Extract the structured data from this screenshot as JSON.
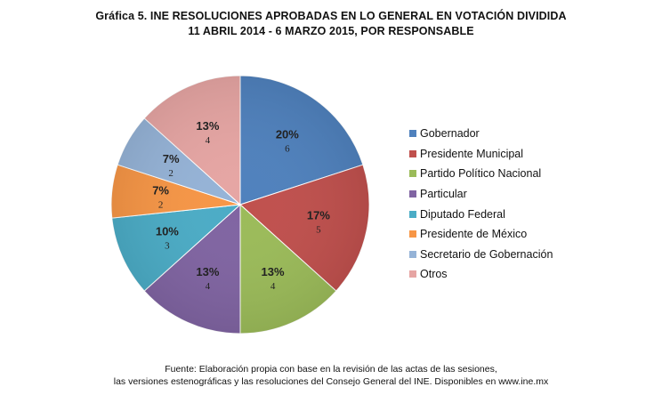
{
  "title": {
    "line1": "Gráfica 5. INE RESOLUCIONES APROBADAS EN LO GENERAL EN VOTACIÓN DIVIDIDA",
    "line2": "11 ABRIL 2014 - 6 MARZO 2015, POR RESPONSABLE"
  },
  "chart_data": {
    "type": "pie",
    "title": "Gráfica 5. INE RESOLUCIONES APROBADAS EN LO GENERAL EN VOTACIÓN DIVIDIDA 11 ABRIL 2014 - 6 MARZO 2015, POR RESPONSABLE",
    "legend_position": "right",
    "slices": [
      {
        "label": "Gobernador",
        "value": 6,
        "percent": "20%",
        "color": "#4f81bd"
      },
      {
        "label": "Presidente Municipal",
        "value": 5,
        "percent": "17%",
        "color": "#c0504d"
      },
      {
        "label": "Partido Político Nacional",
        "value": 4,
        "percent": "13%",
        "color": "#9bbb59"
      },
      {
        "label": "Particular",
        "value": 4,
        "percent": "13%",
        "color": "#8064a2"
      },
      {
        "label": "Diputado Federal",
        "value": 3,
        "percent": "10%",
        "color": "#4bacc6"
      },
      {
        "label": "Presidente de México",
        "value": 2,
        "percent": "7%",
        "color": "#f79646"
      },
      {
        "label": "Secretario de Gobernación",
        "value": 2,
        "percent": "7%",
        "color": "#95b3d7"
      },
      {
        "label": "Otros",
        "value": 4,
        "percent": "13%",
        "color": "#e6a5a3"
      }
    ]
  },
  "source": {
    "line1": "Fuente: Elaboración propia con base en la revisión de las actas de las sesiones,",
    "line2": "las versiones estenográficas y las resoluciones del Consejo General del INE. Disponibles en www.ine.mx"
  }
}
